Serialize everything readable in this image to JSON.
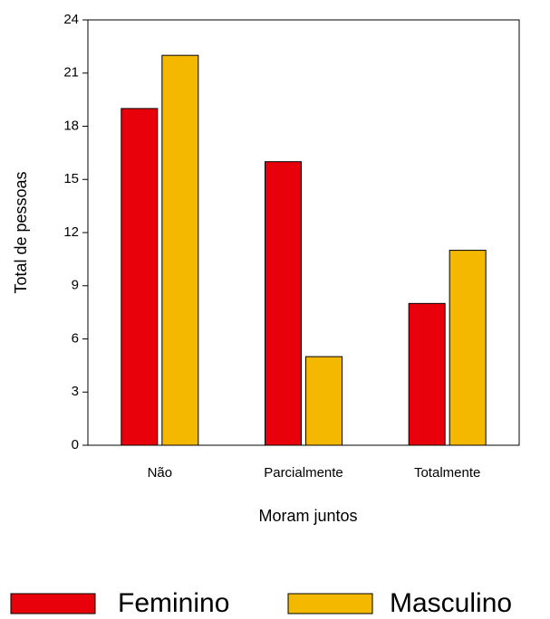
{
  "chart_data": {
    "type": "bar",
    "x_label": "Moram juntos",
    "y_label": "Total de pessoas",
    "categories": [
      "Não",
      "Parcialmente",
      "Totalmente"
    ],
    "series": [
      {
        "name": "Feminino",
        "color": "#e8000b",
        "values": [
          19,
          16,
          8
        ]
      },
      {
        "name": "Masculino",
        "color": "#f5b800",
        "values": [
          22,
          5,
          11
        ]
      }
    ],
    "ylim": [
      0,
      24
    ],
    "yticks": [
      0,
      3,
      6,
      9,
      12,
      15,
      18,
      21,
      24
    ],
    "legend": "bottom"
  }
}
